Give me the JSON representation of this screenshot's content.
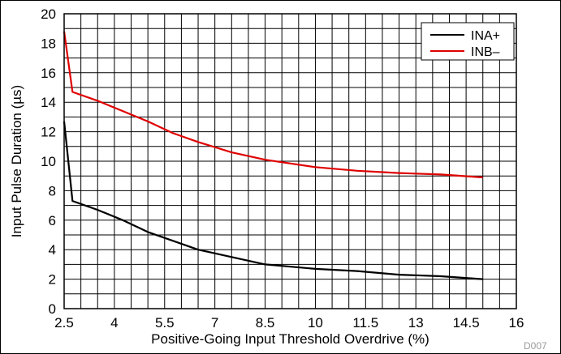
{
  "chart_data": {
    "type": "line",
    "title": "",
    "xlabel": "Positive-Going Input Threshold Overdrive (%)",
    "ylabel": "Input Pulse Duration (µs)",
    "xlim": [
      2.5,
      16
    ],
    "ylim": [
      0,
      20
    ],
    "x_ticks": [
      2.5,
      4,
      5.5,
      7,
      8.5,
      10,
      11.5,
      13,
      14.5,
      16
    ],
    "x_tick_labels": [
      "2.5",
      "4",
      "5.5",
      "7",
      "8.5",
      "10",
      "11.5",
      "13",
      "14.5",
      "16"
    ],
    "y_ticks": [
      0,
      2,
      4,
      6,
      8,
      10,
      12,
      14,
      16,
      18,
      20
    ],
    "y_tick_labels": [
      "0",
      "2",
      "4",
      "6",
      "8",
      "10",
      "12",
      "14",
      "16",
      "18",
      "20"
    ],
    "grid": true,
    "legend_position": "top-right",
    "figure_id": "D007",
    "series": [
      {
        "name": "INA+",
        "color": "#000000",
        "x": [
          2.5,
          2.75,
          3.5,
          4.25,
          5,
          5.75,
          6.5,
          7.5,
          8.5,
          10,
          11.25,
          12.5,
          13.75,
          15
        ],
        "y": [
          12.7,
          7.3,
          6.7,
          6.0,
          5.2,
          4.6,
          4.0,
          3.5,
          3.0,
          2.7,
          2.55,
          2.3,
          2.2,
          2.0
        ]
      },
      {
        "name": "INB–",
        "color": "#e00000",
        "x": [
          2.5,
          2.75,
          3.5,
          4.25,
          5,
          5.75,
          6.5,
          7.5,
          8.5,
          10,
          11.25,
          12.5,
          13.75,
          15
        ],
        "y": [
          18.8,
          14.7,
          14.1,
          13.4,
          12.7,
          11.9,
          11.3,
          10.6,
          10.1,
          9.6,
          9.35,
          9.2,
          9.1,
          8.9
        ]
      }
    ]
  }
}
